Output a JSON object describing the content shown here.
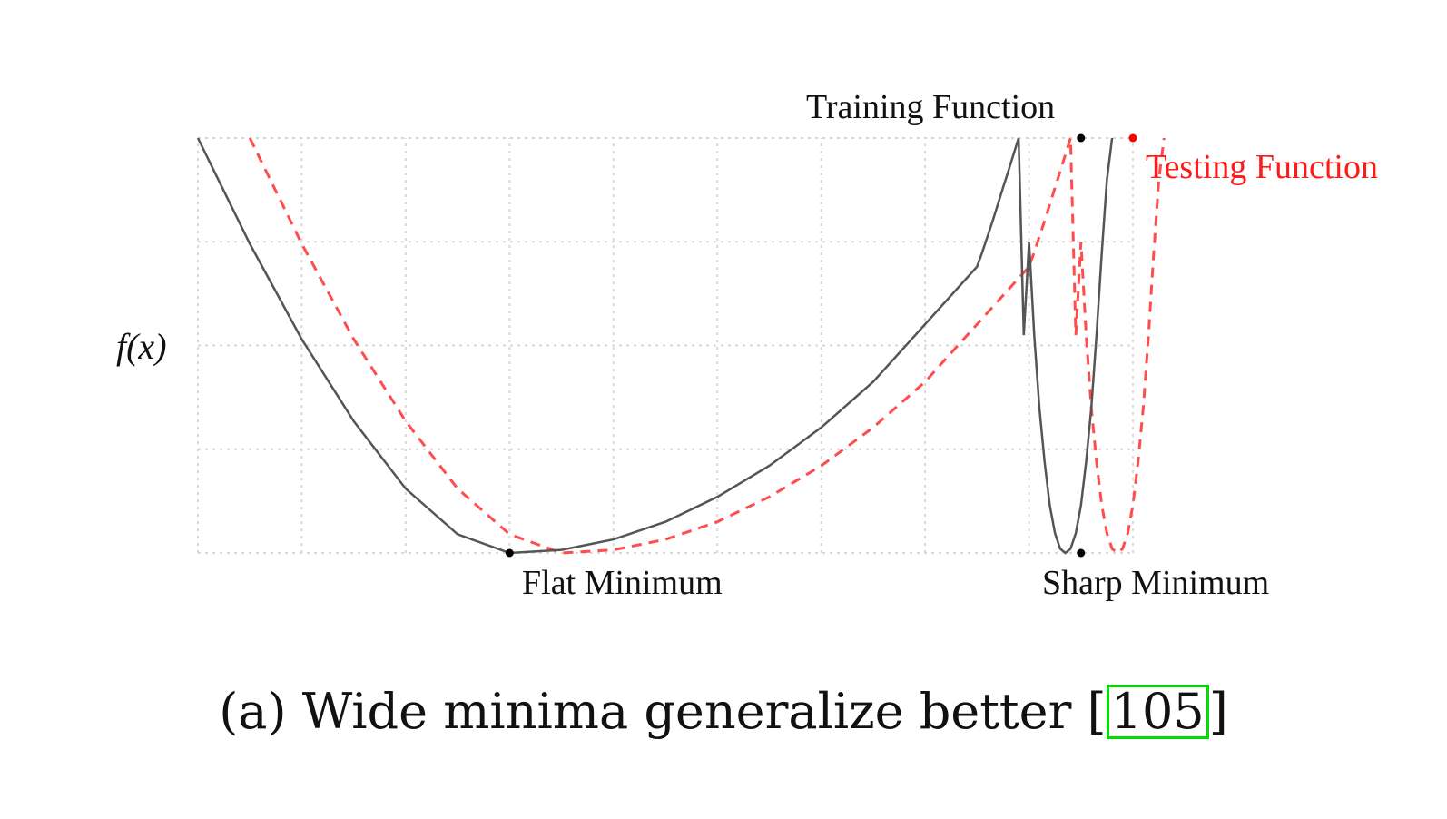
{
  "chart_data": {
    "type": "line",
    "ylabel": "f(x)",
    "xlabel": "",
    "grid": true,
    "xlim": [
      0,
      9
    ],
    "ylim": [
      0,
      4
    ],
    "x_ticks": [
      0,
      1,
      2,
      3,
      4,
      5,
      6,
      7,
      8,
      9
    ],
    "y_ticks": [
      0,
      1,
      2,
      3,
      4
    ],
    "series": [
      {
        "name": "Training Function",
        "color": "#555555",
        "style": "solid",
        "x": [
          0,
          0.5,
          1,
          1.5,
          2,
          2.5,
          3,
          3.5,
          4,
          4.5,
          5,
          5.5,
          6,
          6.5,
          7.5,
          7.55,
          7.6,
          7.65,
          7.7,
          7.75,
          7.8,
          7.85,
          7.9,
          7.95,
          8,
          8.05,
          8.1,
          8.15,
          8.2,
          8.25,
          8.3,
          8.35,
          8.4,
          8.45,
          8.5,
          8.55,
          8.6,
          8.65,
          8.7,
          8.75,
          8.8,
          8.85,
          8.9,
          8.95,
          9
        ],
        "y": [
          4.0,
          2.98,
          2.06,
          1.27,
          0.62,
          0.18,
          0.0,
          0.03,
          0.13,
          0.3,
          0.54,
          0.84,
          1.21,
          1.65,
          2.76,
          2.9,
          3.05,
          3.2,
          3.36,
          3.52,
          3.68,
          3.84,
          4.0,
          2.1,
          3.0,
          2.1,
          1.4,
          0.88,
          0.46,
          0.19,
          0.04,
          0.0,
          0.04,
          0.19,
          0.46,
          0.88,
          1.4,
          2.1,
          2.89,
          3.6,
          4.0,
          null,
          null,
          null,
          null
        ],
        "points": [
          {
            "x": 3.0,
            "y": 0.0
          },
          {
            "x": 8.5,
            "y": 0.0
          },
          {
            "x": 8.5,
            "y": 4.0
          }
        ]
      },
      {
        "name": "Testing Function",
        "color": "#ff4d4d",
        "style": "dashed",
        "x": [],
        "y": [],
        "points": [
          {
            "x": 9.0,
            "y": 4.0
          }
        ]
      }
    ],
    "annotations": [
      {
        "text": "Training Function",
        "x": 7.5,
        "y": 4.0
      },
      {
        "text": "Testing Function",
        "x": 9.0,
        "y": 4.0
      },
      {
        "text": "Flat Minimum",
        "x": 3.0,
        "y": 0.0
      },
      {
        "text": "Sharp Minimum",
        "x": 8.0,
        "y": 0.0
      }
    ]
  },
  "caption": {
    "prefix": "(a) Wide minima generalize better [",
    "citation": "105",
    "suffix": "]"
  }
}
